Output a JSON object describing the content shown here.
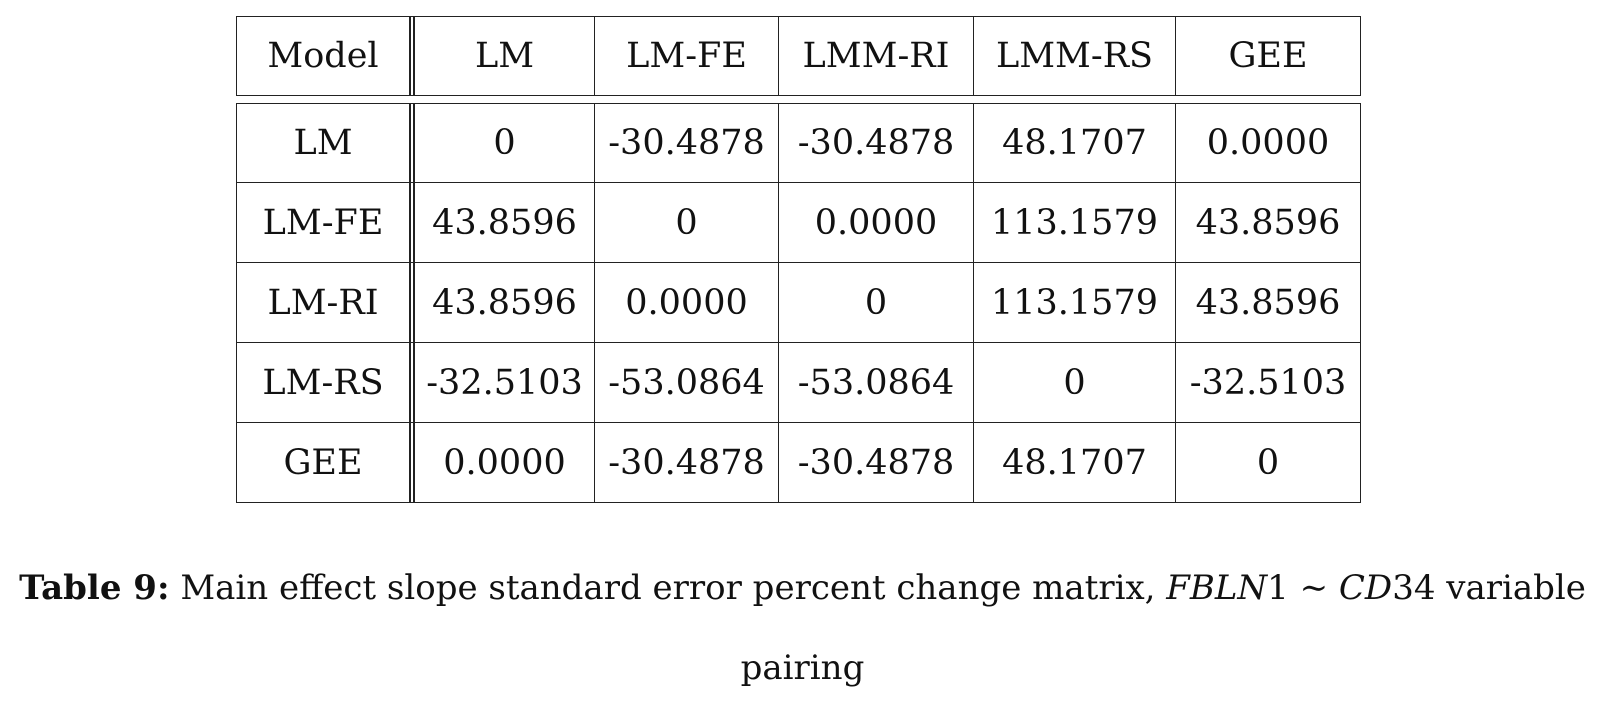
{
  "table": {
    "header": [
      "Model",
      "LM",
      "LM-FE",
      "LMM-RI",
      "LMM-RS",
      "GEE"
    ],
    "rows": [
      [
        "LM",
        "0",
        "-30.4878",
        "-30.4878",
        "48.1707",
        "0.0000"
      ],
      [
        "LM-FE",
        "43.8596",
        "0",
        "0.0000",
        "113.1579",
        "43.8596"
      ],
      [
        "LM-RI",
        "43.8596",
        "0.0000",
        "0",
        "113.1579",
        "43.8596"
      ],
      [
        "LM-RS",
        "-32.5103",
        "-53.0864",
        "-53.0864",
        "0",
        "-32.5103"
      ],
      [
        "GEE",
        "0.0000",
        "-30.4878",
        "-30.4878",
        "48.1707",
        "0"
      ]
    ]
  },
  "caption": {
    "label": "Table 9:",
    "text_before": "Main effect slope standard error percent change matrix,",
    "math_a": "FBLN",
    "num_a": "1",
    "tilde": "∼",
    "math_b": "CD",
    "num_b": "34",
    "text_line1_end": "variable",
    "text_line2": "pairing"
  }
}
